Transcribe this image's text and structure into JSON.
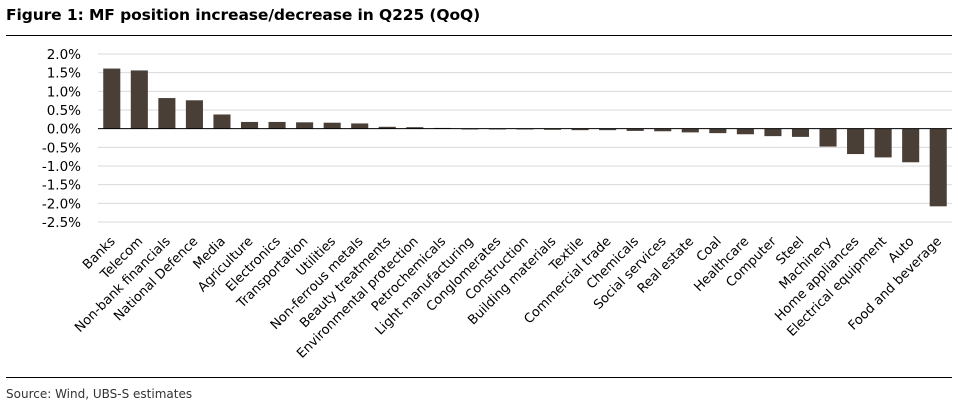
{
  "figure": {
    "title": "Figure 1: MF position increase/decrease in Q225 (QoQ)",
    "source": "Source: Wind, UBS-S estimates"
  },
  "colors": {
    "bar": "#4a3f37",
    "grid": "#d9d9d9",
    "axis": "#000000"
  },
  "chart_data": {
    "type": "bar",
    "title": "Figure 1: MF position increase/decrease in Q225 (QoQ)",
    "xlabel": "",
    "ylabel": "",
    "ylim": [
      -2.5,
      2.0
    ],
    "ytick_values": [
      2.0,
      1.5,
      1.0,
      0.5,
      0.0,
      -0.5,
      -1.0,
      -1.5,
      -2.0,
      -2.5
    ],
    "ytick_labels": [
      "2.0%",
      "1.5%",
      "1.0%",
      "0.5%",
      "0.0%",
      "-0.5%",
      "-1.0%",
      "-1.5%",
      "-2.0%",
      "-2.5%"
    ],
    "grid": true,
    "legend": "none",
    "unit": "%",
    "categories": [
      "Banks",
      "Telecom",
      "Non-bank financials",
      "National Defence",
      "Media",
      "Agriculture",
      "Electronics",
      "Transportation",
      "Utilities",
      "Non-ferrous metals",
      "Beauty treatments",
      "Environmental protection",
      "Petrochemicals",
      "Light manufacturing",
      "Conglomerates",
      "Construction",
      "Building materials",
      "Textile",
      "Commercial trade",
      "Chemicals",
      "Social services",
      "Real estate",
      "Coal",
      "Healthcare",
      "Computer",
      "Steel",
      "Machinery",
      "Home appliances",
      "Electrical equipment",
      "Auto",
      "Food and beverage"
    ],
    "values": [
      1.61,
      1.56,
      0.82,
      0.76,
      0.38,
      0.18,
      0.18,
      0.17,
      0.16,
      0.14,
      0.05,
      0.04,
      0.02,
      0.0,
      -0.01,
      -0.02,
      -0.03,
      -0.04,
      -0.04,
      -0.06,
      -0.07,
      -0.1,
      -0.12,
      -0.15,
      -0.2,
      -0.22,
      -0.48,
      -0.68,
      -0.77,
      -0.9,
      -2.08
    ]
  }
}
